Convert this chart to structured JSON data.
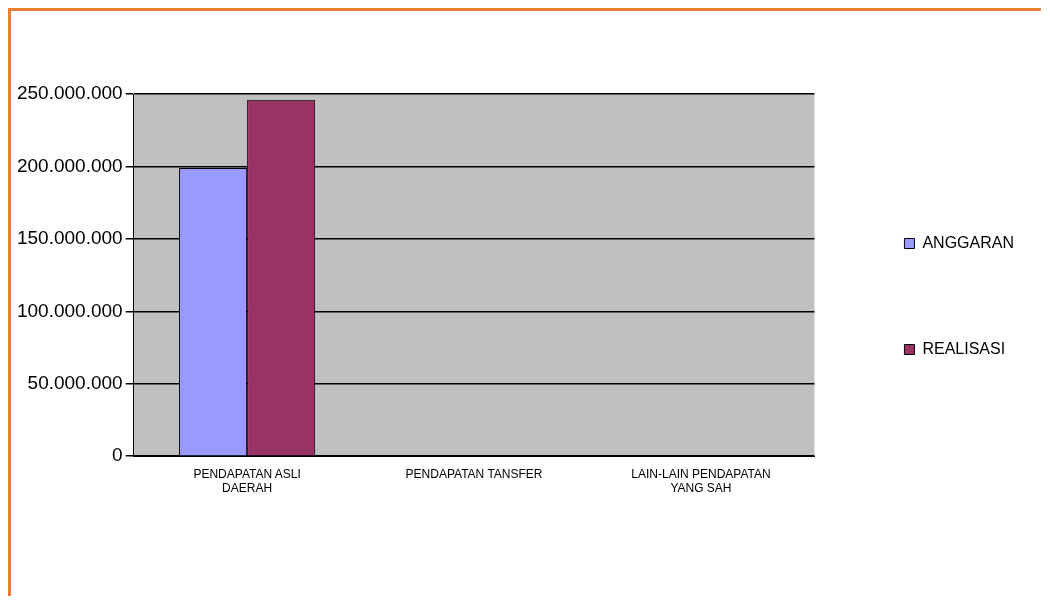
{
  "chart_data": {
    "type": "bar",
    "categories": [
      "PENDAPATAN ASLI DAERAH",
      "PENDAPATAN TANSFER",
      "LAIN-LAIN PENDAPATAN YANG SAH"
    ],
    "series": [
      {
        "name": "ANGGARAN",
        "color": "#9999ff",
        "values": [
          199000000,
          0,
          0
        ]
      },
      {
        "name": "REALISASI",
        "color": "#993366",
        "values": [
          246000000,
          0,
          0
        ]
      }
    ],
    "ylim": [
      0,
      250000000
    ],
    "yticks": [
      {
        "value": 0,
        "label": "0"
      },
      {
        "value": 50000000,
        "label": "50.000.000"
      },
      {
        "value": 100000000,
        "label": "100.000.000"
      },
      {
        "value": 150000000,
        "label": "150.000.000"
      },
      {
        "value": 200000000,
        "label": "200.000.000"
      },
      {
        "value": 250000000,
        "label": "250.000.000"
      }
    ],
    "grid": "y",
    "legend": "right"
  }
}
